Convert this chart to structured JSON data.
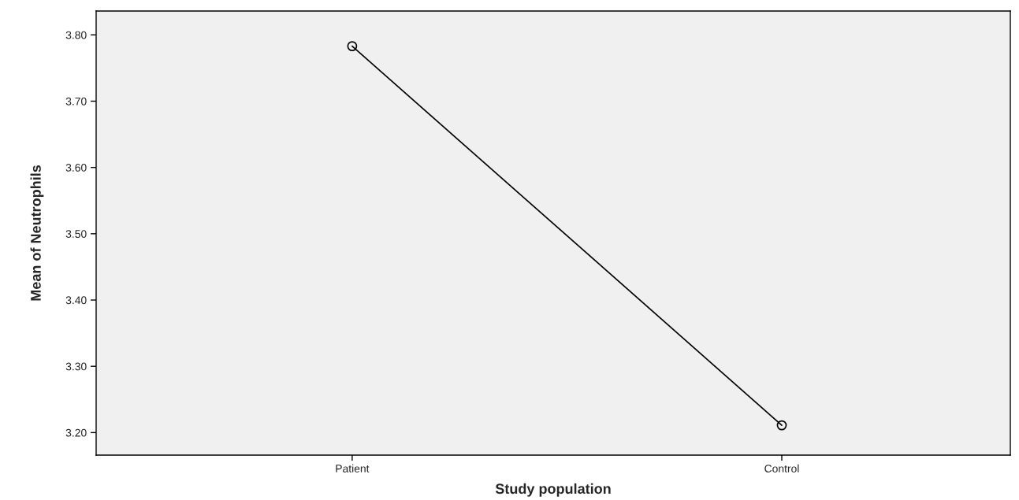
{
  "chart_data": {
    "type": "line",
    "xlabel": "Study population",
    "ylabel": "Mean of Neutrophils",
    "categories": [
      "Patient",
      "Control"
    ],
    "series": [
      {
        "color": "#000000",
        "values": [
          3.783,
          3.211
        ]
      }
    ],
    "ylim": [
      3.166,
      3.836
    ],
    "yticks": [
      {
        "value": 3.2,
        "label": "3.20"
      },
      {
        "value": 3.3,
        "label": "3.30"
      },
      {
        "value": 3.4,
        "label": "3.40"
      },
      {
        "value": 3.5,
        "label": "3.50"
      },
      {
        "value": 3.6,
        "label": "3.60"
      },
      {
        "value": 3.7,
        "label": "3.70"
      },
      {
        "value": 3.8,
        "label": "3.80"
      }
    ],
    "marker": "circle",
    "line_style": "solid",
    "grid": false,
    "legend": false
  }
}
